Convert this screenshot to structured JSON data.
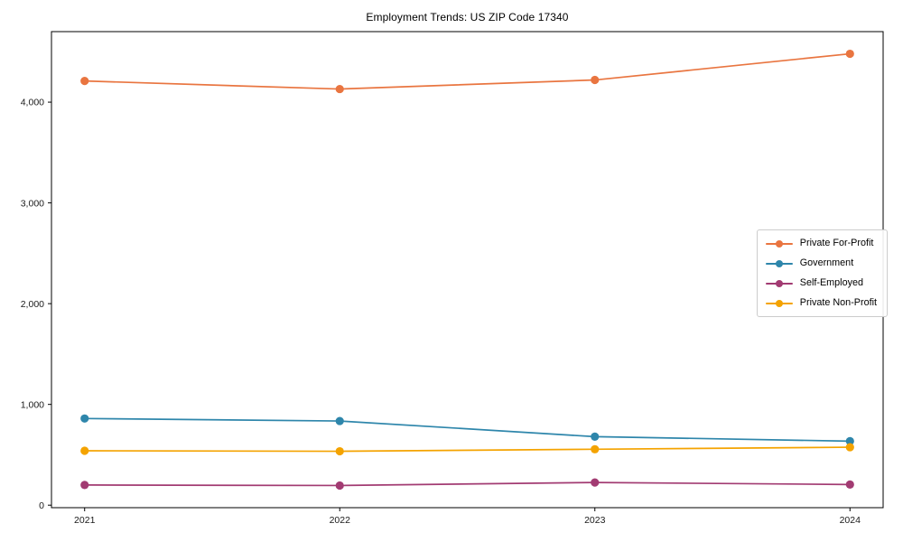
{
  "chart_data": {
    "type": "line",
    "title": "Employment Trends: US ZIP Code 17340",
    "xlabel": "",
    "ylabel": "",
    "categories": [
      "2021",
      "2022",
      "2023",
      "2024"
    ],
    "x": [
      2021,
      2022,
      2023,
      2024
    ],
    "series": [
      {
        "name": "Private For-Profit",
        "color": "#E97540",
        "values": [
          4210,
          4130,
          4220,
          4480
        ]
      },
      {
        "name": "Government",
        "color": "#2E86AB",
        "values": [
          860,
          835,
          680,
          635
        ]
      },
      {
        "name": "Self-Employed",
        "color": "#A23B72",
        "values": [
          200,
          195,
          225,
          205
        ]
      },
      {
        "name": "Private Non-Profit",
        "color": "#F4A300",
        "values": [
          540,
          535,
          555,
          575
        ]
      }
    ],
    "yticks": {
      "values": [
        0,
        1000,
        2000,
        3000,
        4000
      ],
      "labels": [
        "0",
        "1,000",
        "2,000",
        "3,000",
        "4,000"
      ]
    },
    "ylim": [
      -25,
      4700
    ],
    "xlim": [
      2020.87,
      2024.13
    ],
    "grid": false,
    "legend_position": "center-right",
    "axis_color": "#000000",
    "tick_label_color": "#1a1a1a"
  }
}
